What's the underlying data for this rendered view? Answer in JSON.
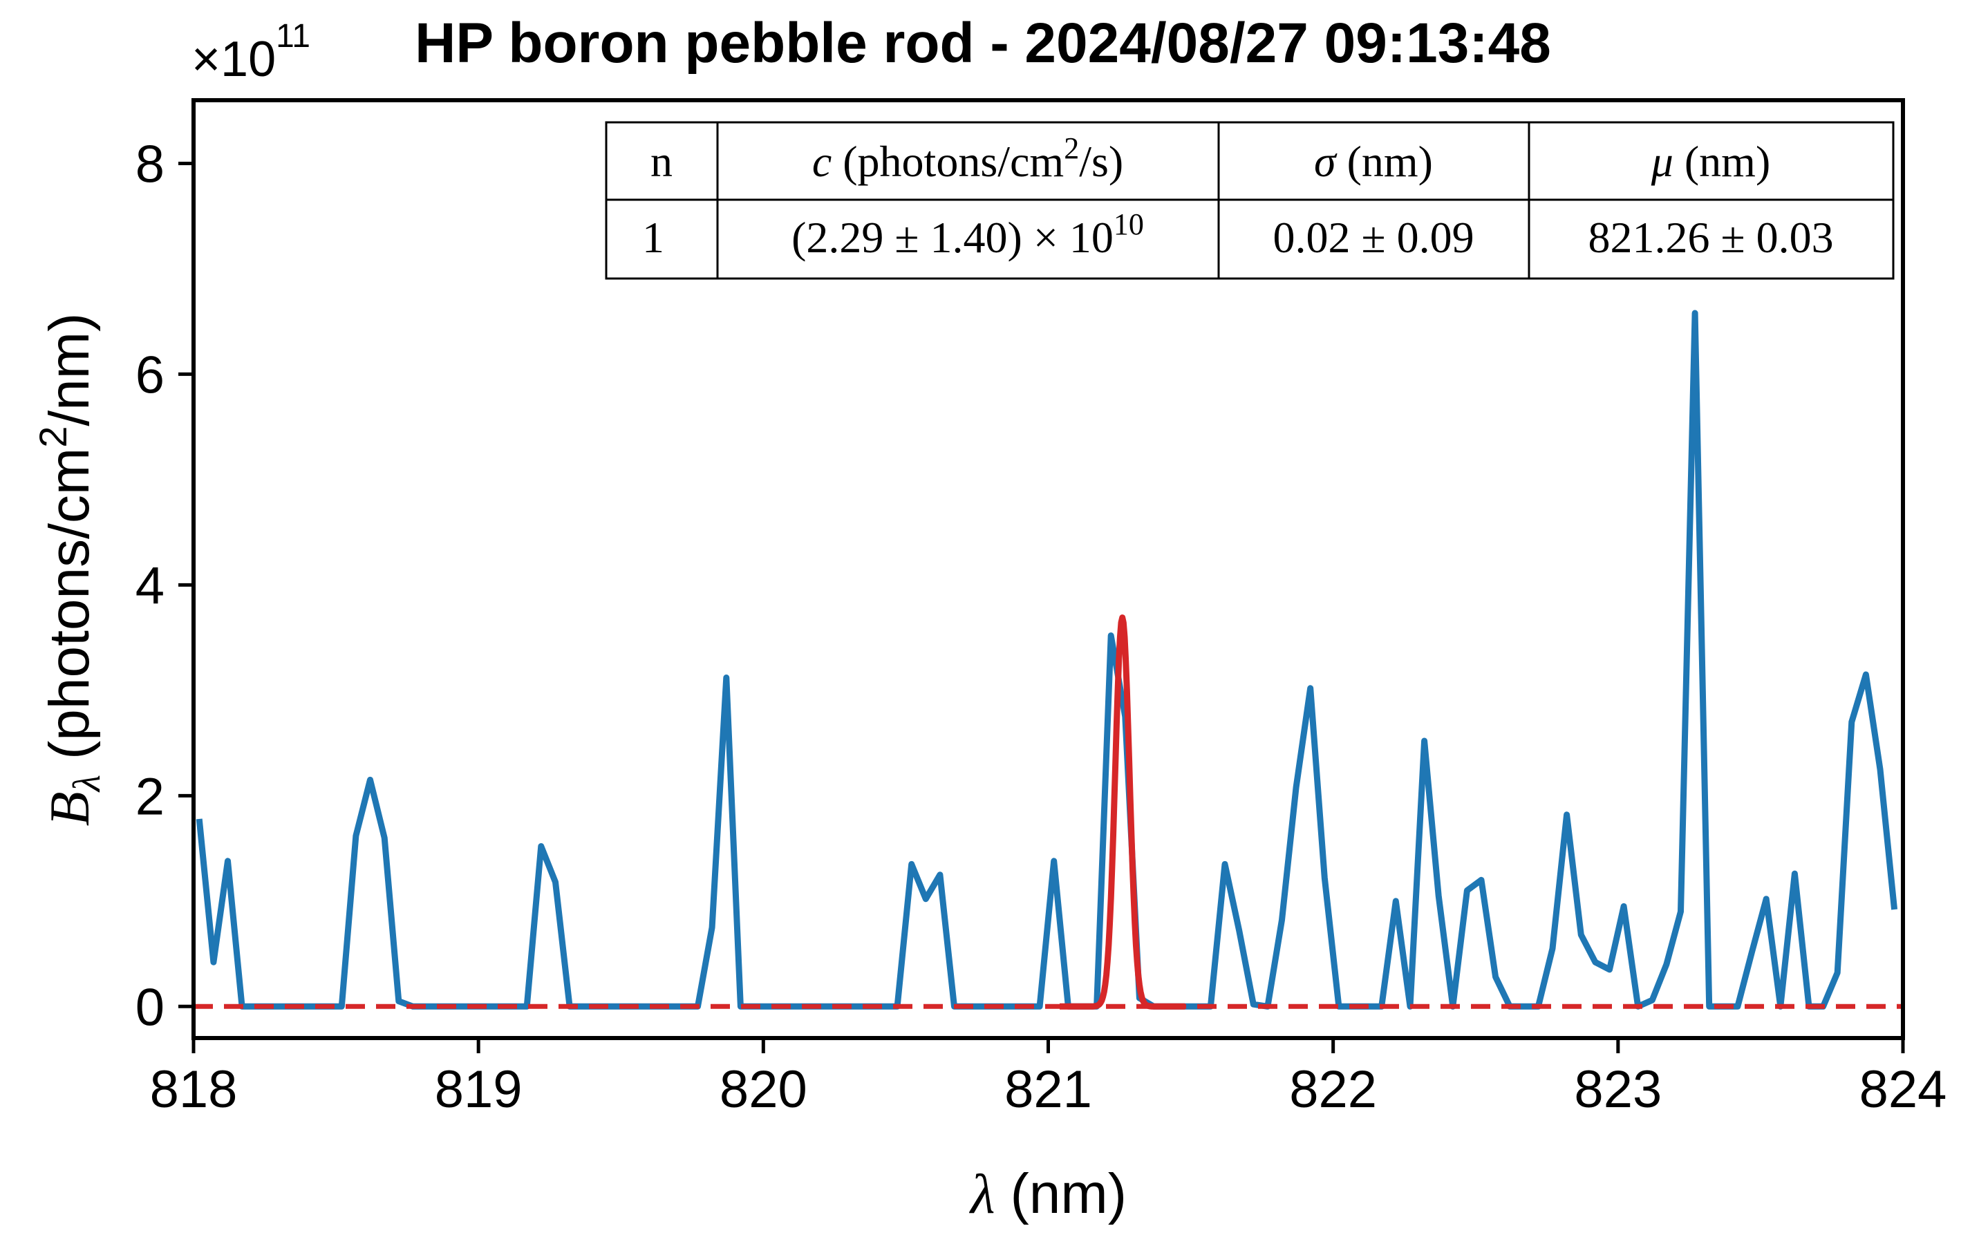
{
  "chart_data": {
    "type": "line",
    "title": "HP boron pebble rod - 2024/08/27 09:13:48",
    "xlabel_symbol": "λ",
    "xlabel_unit": "(nm)",
    "ylabel_symbol": "B",
    "ylabel_subscript": "λ",
    "ylabel_unit_prefix": "(photons/cm",
    "ylabel_unit_sup": "2",
    "ylabel_unit_suffix": "/nm)",
    "y_scale_prefix": "×10",
    "y_scale_exponent": "11",
    "xlim": [
      818,
      824
    ],
    "ylim": [
      -0.3,
      8.6
    ],
    "x_ticks": [
      "818",
      "819",
      "820",
      "821",
      "822",
      "823",
      "824"
    ],
    "y_ticks": [
      "0",
      "2",
      "4",
      "6",
      "8"
    ],
    "colors": {
      "spectrum": "#1f77b4",
      "fit": "#d62728",
      "baseline": "#d62728",
      "axis": "#000000"
    },
    "series": [
      {
        "style": "solid",
        "x": [
          818.02,
          818.07,
          818.12,
          818.17,
          818.22,
          818.27,
          818.32,
          818.37,
          818.42,
          818.47,
          818.52,
          818.57,
          818.62,
          818.67,
          818.72,
          818.77,
          818.82,
          818.87,
          818.92,
          818.97,
          819.02,
          819.07,
          819.12,
          819.17,
          819.22,
          819.27,
          819.32,
          819.37,
          819.42,
          819.47,
          819.52,
          819.57,
          819.62,
          819.67,
          819.72,
          819.77,
          819.82,
          819.87,
          819.92,
          819.97,
          820.02,
          820.07,
          820.12,
          820.17,
          820.22,
          820.27,
          820.32,
          820.37,
          820.42,
          820.47,
          820.52,
          820.57,
          820.62,
          820.67,
          820.72,
          820.77,
          820.82,
          820.87,
          820.92,
          820.97,
          821.02,
          821.07,
          821.12,
          821.17,
          821.22,
          821.27,
          821.32,
          821.37,
          821.42,
          821.47,
          821.52,
          821.57,
          821.62,
          821.67,
          821.72,
          821.77,
          821.82,
          821.87,
          821.92,
          821.97,
          822.02,
          822.07,
          822.12,
          822.17,
          822.22,
          822.27,
          822.32,
          822.37,
          822.42,
          822.47,
          822.52,
          822.57,
          822.62,
          822.67,
          822.72,
          822.77,
          822.82,
          822.87,
          822.92,
          822.97,
          823.02,
          823.07,
          823.12,
          823.17,
          823.22,
          823.27,
          823.32,
          823.37,
          823.42,
          823.47,
          823.52,
          823.57,
          823.62,
          823.67,
          823.72,
          823.77,
          823.82,
          823.87,
          823.92,
          823.97
        ],
        "y": [
          1.78,
          0.42,
          1.38,
          0,
          0,
          0,
          0,
          0,
          0,
          0,
          0,
          1.62,
          2.15,
          1.6,
          0.05,
          0,
          0,
          0,
          0,
          0,
          0,
          0,
          0,
          0,
          1.52,
          1.18,
          0,
          0,
          0,
          0,
          0,
          0,
          0,
          0,
          0,
          0,
          0.75,
          3.12,
          0,
          0,
          0,
          0,
          0,
          0,
          0,
          0,
          0,
          0,
          0,
          0,
          1.35,
          1.02,
          1.25,
          0,
          0,
          0,
          0,
          0,
          0,
          0,
          1.38,
          0,
          0,
          0,
          3.52,
          2.75,
          0.08,
          0,
          0,
          0,
          0,
          0,
          1.35,
          0.72,
          0.02,
          0,
          0.82,
          2.08,
          3.02,
          1.22,
          0,
          0,
          0,
          0,
          1.0,
          0,
          2.52,
          1.05,
          0,
          1.1,
          1.2,
          0.28,
          0,
          0,
          0,
          0.55,
          1.82,
          0.68,
          0.42,
          0.35,
          0.95,
          0,
          0.06,
          0.4,
          0.9,
          6.58,
          0,
          0,
          0,
          0.52,
          1.02,
          0,
          1.26,
          0,
          0,
          0.32,
          2.7,
          3.15,
          2.25,
          0.92
        ]
      },
      {
        "style": "gaussian-fit",
        "amplitude": 3.69,
        "center": 821.26,
        "sigma": 0.025
      },
      {
        "style": "dashed",
        "x": [
          818,
          824
        ],
        "y": [
          0,
          0
        ]
      }
    ],
    "table": {
      "headers": [
        {
          "italic": "",
          "roman": "n",
          "sup": "",
          "tail": ""
        },
        {
          "italic": "c",
          "roman": " (photons/cm",
          "sup": "2",
          "tail": "/s)"
        },
        {
          "italic": "σ",
          "roman": " (nm)",
          "sup": "",
          "tail": ""
        },
        {
          "italic": "μ",
          "roman": " (nm)",
          "sup": "",
          "tail": ""
        }
      ],
      "row": [
        {
          "text": "1",
          "sup": ""
        },
        {
          "text": "(2.29 ± 1.40) × 10",
          "sup": "10"
        },
        {
          "text": "0.02 ± 0.09",
          "sup": ""
        },
        {
          "text": "821.26 ± 0.03",
          "sup": ""
        }
      ]
    }
  }
}
